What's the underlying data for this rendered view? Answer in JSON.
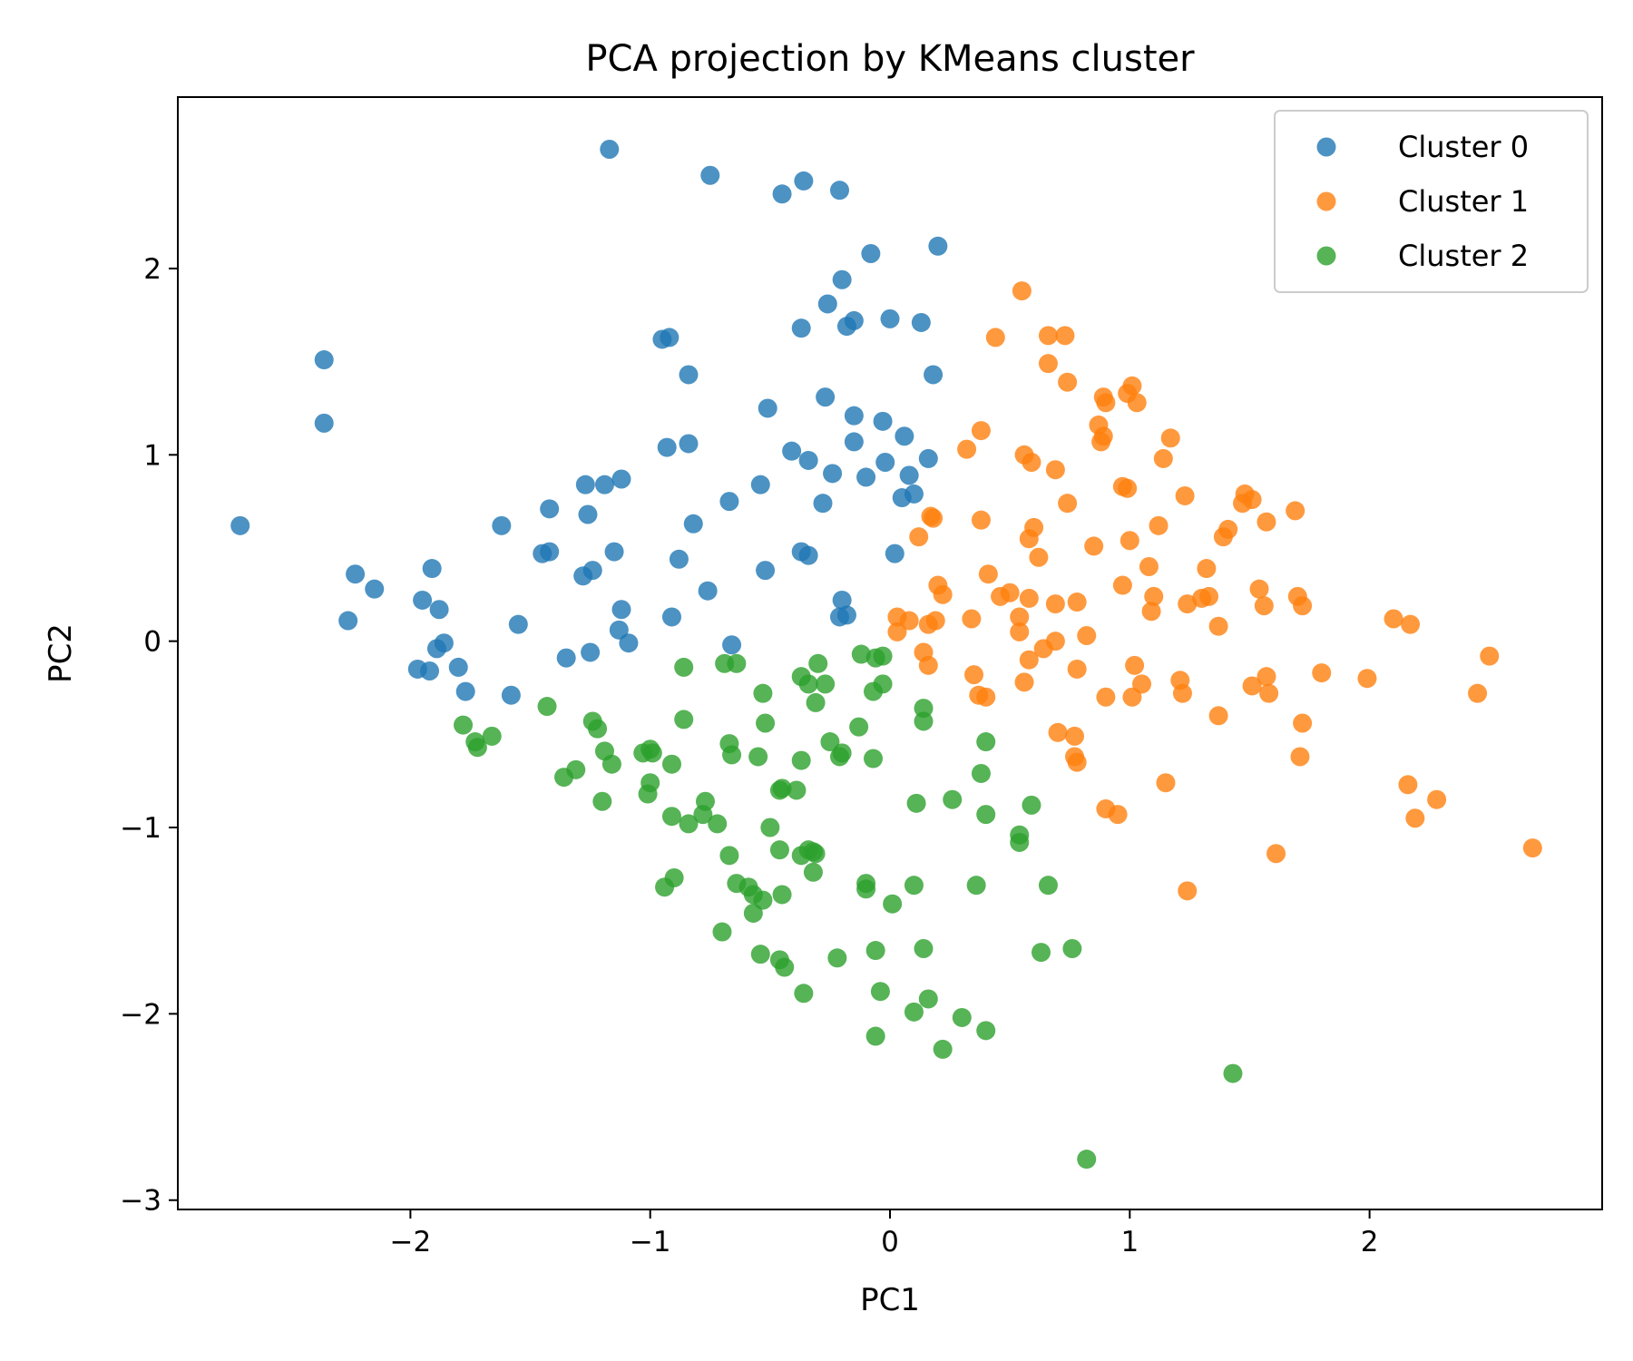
{
  "chart_data": {
    "type": "scatter",
    "title": "PCA projection by KMeans cluster",
    "xlabel": "PC1",
    "ylabel": "PC2",
    "xlim": [
      -2.97,
      2.97
    ],
    "ylim": [
      -3.05,
      2.92
    ],
    "xticks": [
      -2,
      -1,
      0,
      1,
      2
    ],
    "yticks": [
      -3,
      -2,
      -1,
      0,
      1,
      2
    ],
    "xtick_labels": [
      "−2",
      "−1",
      "0",
      "1",
      "2"
    ],
    "ytick_labels": [
      "−3",
      "−2",
      "−1",
      "0",
      "1",
      "2"
    ],
    "grid": false,
    "legend_position": "top-right",
    "series": [
      {
        "name": "Cluster 0",
        "color": "#1f77b4",
        "points": [
          [
            -1.17,
            2.64
          ],
          [
            -0.75,
            2.5
          ],
          [
            -0.45,
            2.4
          ],
          [
            -0.36,
            2.47
          ],
          [
            -0.21,
            2.42
          ],
          [
            -0.08,
            2.08
          ],
          [
            0.2,
            2.12
          ],
          [
            -0.2,
            1.94
          ],
          [
            -0.26,
            1.81
          ],
          [
            -0.15,
            1.72
          ],
          [
            -0.18,
            1.69
          ],
          [
            0.0,
            1.73
          ],
          [
            0.13,
            1.71
          ],
          [
            -0.37,
            1.68
          ],
          [
            -0.95,
            1.62
          ],
          [
            -0.92,
            1.63
          ],
          [
            -0.84,
            1.43
          ],
          [
            0.18,
            1.43
          ],
          [
            -2.36,
            1.51
          ],
          [
            -2.36,
            1.17
          ],
          [
            -0.51,
            1.25
          ],
          [
            -0.27,
            1.31
          ],
          [
            -0.15,
            1.21
          ],
          [
            -0.03,
            1.18
          ],
          [
            0.06,
            1.1
          ],
          [
            -0.15,
            1.07
          ],
          [
            -0.93,
            1.04
          ],
          [
            -0.84,
            1.06
          ],
          [
            -0.41,
            1.02
          ],
          [
            -0.34,
            0.97
          ],
          [
            -0.02,
            0.96
          ],
          [
            0.16,
            0.98
          ],
          [
            -0.24,
            0.9
          ],
          [
            -0.1,
            0.88
          ],
          [
            0.08,
            0.89
          ],
          [
            0.05,
            0.77
          ],
          [
            0.1,
            0.79
          ],
          [
            -1.27,
            0.84
          ],
          [
            -1.19,
            0.84
          ],
          [
            -1.12,
            0.87
          ],
          [
            -0.54,
            0.84
          ],
          [
            -0.67,
            0.75
          ],
          [
            -0.28,
            0.74
          ],
          [
            -2.71,
            0.62
          ],
          [
            -1.62,
            0.62
          ],
          [
            -1.42,
            0.71
          ],
          [
            -1.26,
            0.68
          ],
          [
            -0.82,
            0.63
          ],
          [
            -1.45,
            0.47
          ],
          [
            -1.42,
            0.48
          ],
          [
            -1.15,
            0.48
          ],
          [
            -0.88,
            0.44
          ],
          [
            -0.37,
            0.48
          ],
          [
            -0.34,
            0.46
          ],
          [
            0.02,
            0.47
          ],
          [
            -2.23,
            0.36
          ],
          [
            -2.15,
            0.28
          ],
          [
            -1.91,
            0.39
          ],
          [
            -1.28,
            0.35
          ],
          [
            -1.24,
            0.38
          ],
          [
            -0.52,
            0.38
          ],
          [
            -1.95,
            0.22
          ],
          [
            -1.88,
            0.17
          ],
          [
            -0.76,
            0.27
          ],
          [
            -0.2,
            0.22
          ],
          [
            -0.21,
            0.13
          ],
          [
            -0.18,
            0.14
          ],
          [
            -2.26,
            0.11
          ],
          [
            -1.55,
            0.09
          ],
          [
            -1.12,
            0.17
          ],
          [
            -0.91,
            0.13
          ],
          [
            -1.89,
            -0.04
          ],
          [
            -1.86,
            -0.01
          ],
          [
            -1.13,
            0.06
          ],
          [
            -1.09,
            -0.01
          ],
          [
            -1.25,
            -0.06
          ],
          [
            -1.35,
            -0.09
          ],
          [
            -0.66,
            -0.02
          ],
          [
            -1.97,
            -0.15
          ],
          [
            -1.92,
            -0.16
          ],
          [
            -1.8,
            -0.14
          ],
          [
            -1.77,
            -0.27
          ],
          [
            -1.58,
            -0.29
          ]
        ]
      },
      {
        "name": "Cluster 1",
        "color": "#ff7f0e",
        "points": [
          [
            0.55,
            1.88
          ],
          [
            0.44,
            1.63
          ],
          [
            0.66,
            1.64
          ],
          [
            0.73,
            1.64
          ],
          [
            0.66,
            1.49
          ],
          [
            0.74,
            1.39
          ],
          [
            0.89,
            1.31
          ],
          [
            0.9,
            1.28
          ],
          [
            1.01,
            1.37
          ],
          [
            0.99,
            1.33
          ],
          [
            1.03,
            1.28
          ],
          [
            0.38,
            1.13
          ],
          [
            0.87,
            1.16
          ],
          [
            0.88,
            1.07
          ],
          [
            0.89,
            1.1
          ],
          [
            1.17,
            1.09
          ],
          [
            1.14,
            0.98
          ],
          [
            0.32,
            1.03
          ],
          [
            0.56,
            1.0
          ],
          [
            0.59,
            0.96
          ],
          [
            0.69,
            0.92
          ],
          [
            0.97,
            0.83
          ],
          [
            0.99,
            0.82
          ],
          [
            1.23,
            0.78
          ],
          [
            1.47,
            0.74
          ],
          [
            1.48,
            0.79
          ],
          [
            1.51,
            0.76
          ],
          [
            1.69,
            0.7
          ],
          [
            0.74,
            0.74
          ],
          [
            0.17,
            0.67
          ],
          [
            0.18,
            0.66
          ],
          [
            0.12,
            0.56
          ],
          [
            0.38,
            0.65
          ],
          [
            0.6,
            0.61
          ],
          [
            0.58,
            0.55
          ],
          [
            0.62,
            0.45
          ],
          [
            0.85,
            0.51
          ],
          [
            1.0,
            0.54
          ],
          [
            1.12,
            0.62
          ],
          [
            1.39,
            0.56
          ],
          [
            1.41,
            0.6
          ],
          [
            1.57,
            0.64
          ],
          [
            0.41,
            0.36
          ],
          [
            0.2,
            0.3
          ],
          [
            0.22,
            0.25
          ],
          [
            0.46,
            0.24
          ],
          [
            0.5,
            0.26
          ],
          [
            0.58,
            0.23
          ],
          [
            1.08,
            0.4
          ],
          [
            0.97,
            0.3
          ],
          [
            1.1,
            0.24
          ],
          [
            1.24,
            0.2
          ],
          [
            1.3,
            0.23
          ],
          [
            1.32,
            0.39
          ],
          [
            1.33,
            0.24
          ],
          [
            0.69,
            0.2
          ],
          [
            0.78,
            0.21
          ],
          [
            1.09,
            0.16
          ],
          [
            1.54,
            0.28
          ],
          [
            1.56,
            0.19
          ],
          [
            1.7,
            0.24
          ],
          [
            1.72,
            0.19
          ],
          [
            0.03,
            0.05
          ],
          [
            0.03,
            0.13
          ],
          [
            0.08,
            0.11
          ],
          [
            0.16,
            0.09
          ],
          [
            0.19,
            0.11
          ],
          [
            0.34,
            0.12
          ],
          [
            0.54,
            0.13
          ],
          [
            0.54,
            0.05
          ],
          [
            0.82,
            0.03
          ],
          [
            1.37,
            0.08
          ],
          [
            0.14,
            -0.06
          ],
          [
            0.16,
            -0.13
          ],
          [
            0.35,
            -0.18
          ],
          [
            0.37,
            -0.29
          ],
          [
            0.4,
            -0.3
          ],
          [
            0.56,
            -0.22
          ],
          [
            0.58,
            -0.1
          ],
          [
            0.64,
            -0.04
          ],
          [
            0.69,
            0.0
          ],
          [
            0.78,
            -0.15
          ],
          [
            0.9,
            -0.3
          ],
          [
            1.02,
            -0.13
          ],
          [
            1.01,
            -0.3
          ],
          [
            1.05,
            -0.23
          ],
          [
            1.21,
            -0.21
          ],
          [
            1.22,
            -0.28
          ],
          [
            1.37,
            -0.4
          ],
          [
            1.51,
            -0.24
          ],
          [
            1.57,
            -0.19
          ],
          [
            1.58,
            -0.28
          ],
          [
            1.8,
            -0.17
          ],
          [
            1.99,
            -0.2
          ],
          [
            2.1,
            0.12
          ],
          [
            2.17,
            0.09
          ],
          [
            2.5,
            -0.08
          ],
          [
            2.45,
            -0.28
          ],
          [
            0.7,
            -0.49
          ],
          [
            0.77,
            -0.51
          ],
          [
            0.77,
            -0.62
          ],
          [
            0.78,
            -0.65
          ],
          [
            1.15,
            -0.76
          ],
          [
            1.72,
            -0.44
          ],
          [
            1.71,
            -0.62
          ],
          [
            0.9,
            -0.9
          ],
          [
            0.95,
            -0.93
          ],
          [
            2.16,
            -0.77
          ],
          [
            2.19,
            -0.95
          ],
          [
            2.28,
            -0.85
          ],
          [
            1.61,
            -1.14
          ],
          [
            1.24,
            -1.34
          ],
          [
            2.68,
            -1.11
          ]
        ]
      },
      {
        "name": "Cluster 2",
        "color": "#2ca02c",
        "points": [
          [
            -1.78,
            -0.45
          ],
          [
            -1.73,
            -0.54
          ],
          [
            -1.72,
            -0.57
          ],
          [
            -1.66,
            -0.51
          ],
          [
            -1.43,
            -0.35
          ],
          [
            -1.24,
            -0.43
          ],
          [
            -1.22,
            -0.47
          ],
          [
            -0.86,
            -0.14
          ],
          [
            -0.69,
            -0.12
          ],
          [
            -0.64,
            -0.12
          ],
          [
            -0.53,
            -0.28
          ],
          [
            -0.37,
            -0.19
          ],
          [
            -0.34,
            -0.23
          ],
          [
            -0.3,
            -0.12
          ],
          [
            -0.27,
            -0.23
          ],
          [
            -0.31,
            -0.33
          ],
          [
            -0.12,
            -0.07
          ],
          [
            -0.06,
            -0.09
          ],
          [
            -0.03,
            -0.08
          ],
          [
            -0.07,
            -0.27
          ],
          [
            -0.03,
            -0.23
          ],
          [
            -1.19,
            -0.59
          ],
          [
            -1.16,
            -0.66
          ],
          [
            -1.03,
            -0.6
          ],
          [
            -1.0,
            -0.58
          ],
          [
            -0.99,
            -0.6
          ],
          [
            -0.91,
            -0.66
          ],
          [
            -0.86,
            -0.42
          ],
          [
            -0.67,
            -0.55
          ],
          [
            -0.66,
            -0.61
          ],
          [
            -0.55,
            -0.62
          ],
          [
            -0.52,
            -0.44
          ],
          [
            -0.37,
            -0.64
          ],
          [
            -0.25,
            -0.54
          ],
          [
            -0.2,
            -0.6
          ],
          [
            -0.21,
            -0.62
          ],
          [
            -0.13,
            -0.46
          ],
          [
            -0.07,
            -0.63
          ],
          [
            0.14,
            -0.36
          ],
          [
            0.14,
            -0.43
          ],
          [
            -1.36,
            -0.73
          ],
          [
            -1.31,
            -0.69
          ],
          [
            -1.2,
            -0.86
          ],
          [
            -1.01,
            -0.82
          ],
          [
            -1.0,
            -0.76
          ],
          [
            -0.91,
            -0.94
          ],
          [
            -0.84,
            -0.98
          ],
          [
            -0.78,
            -0.93
          ],
          [
            -0.77,
            -0.86
          ],
          [
            -0.72,
            -0.98
          ],
          [
            -0.46,
            -0.8
          ],
          [
            -0.45,
            -0.79
          ],
          [
            -0.39,
            -0.8
          ],
          [
            -0.5,
            -1.0
          ],
          [
            -0.46,
            -1.12
          ],
          [
            -0.37,
            -1.15
          ],
          [
            -0.34,
            -1.12
          ],
          [
            -0.32,
            -1.13
          ],
          [
            -0.31,
            -1.14
          ],
          [
            -0.32,
            -1.24
          ],
          [
            0.11,
            -0.87
          ],
          [
            0.26,
            -0.85
          ],
          [
            0.38,
            -0.71
          ],
          [
            0.4,
            -0.54
          ],
          [
            0.4,
            -0.93
          ],
          [
            0.59,
            -0.88
          ],
          [
            0.54,
            -1.04
          ],
          [
            0.54,
            -1.08
          ],
          [
            -0.94,
            -1.32
          ],
          [
            -0.9,
            -1.27
          ],
          [
            -0.67,
            -1.15
          ],
          [
            -0.64,
            -1.3
          ],
          [
            -0.59,
            -1.32
          ],
          [
            -0.57,
            -1.36
          ],
          [
            -0.53,
            -1.39
          ],
          [
            -0.45,
            -1.36
          ],
          [
            -0.1,
            -1.3
          ],
          [
            -0.1,
            -1.33
          ],
          [
            0.01,
            -1.41
          ],
          [
            0.1,
            -1.31
          ],
          [
            0.36,
            -1.31
          ],
          [
            0.66,
            -1.31
          ],
          [
            -0.7,
            -1.56
          ],
          [
            -0.57,
            -1.46
          ],
          [
            -0.54,
            -1.68
          ],
          [
            -0.46,
            -1.71
          ],
          [
            -0.44,
            -1.75
          ],
          [
            -0.36,
            -1.89
          ],
          [
            -0.22,
            -1.7
          ],
          [
            -0.06,
            -1.66
          ],
          [
            -0.04,
            -1.88
          ],
          [
            0.14,
            -1.65
          ],
          [
            0.63,
            -1.67
          ],
          [
            0.76,
            -1.65
          ],
          [
            -0.06,
            -2.12
          ],
          [
            0.1,
            -1.99
          ],
          [
            0.16,
            -1.92
          ],
          [
            0.22,
            -2.19
          ],
          [
            0.3,
            -2.02
          ],
          [
            0.4,
            -2.09
          ],
          [
            1.43,
            -2.32
          ],
          [
            0.82,
            -2.78
          ]
        ]
      }
    ]
  }
}
